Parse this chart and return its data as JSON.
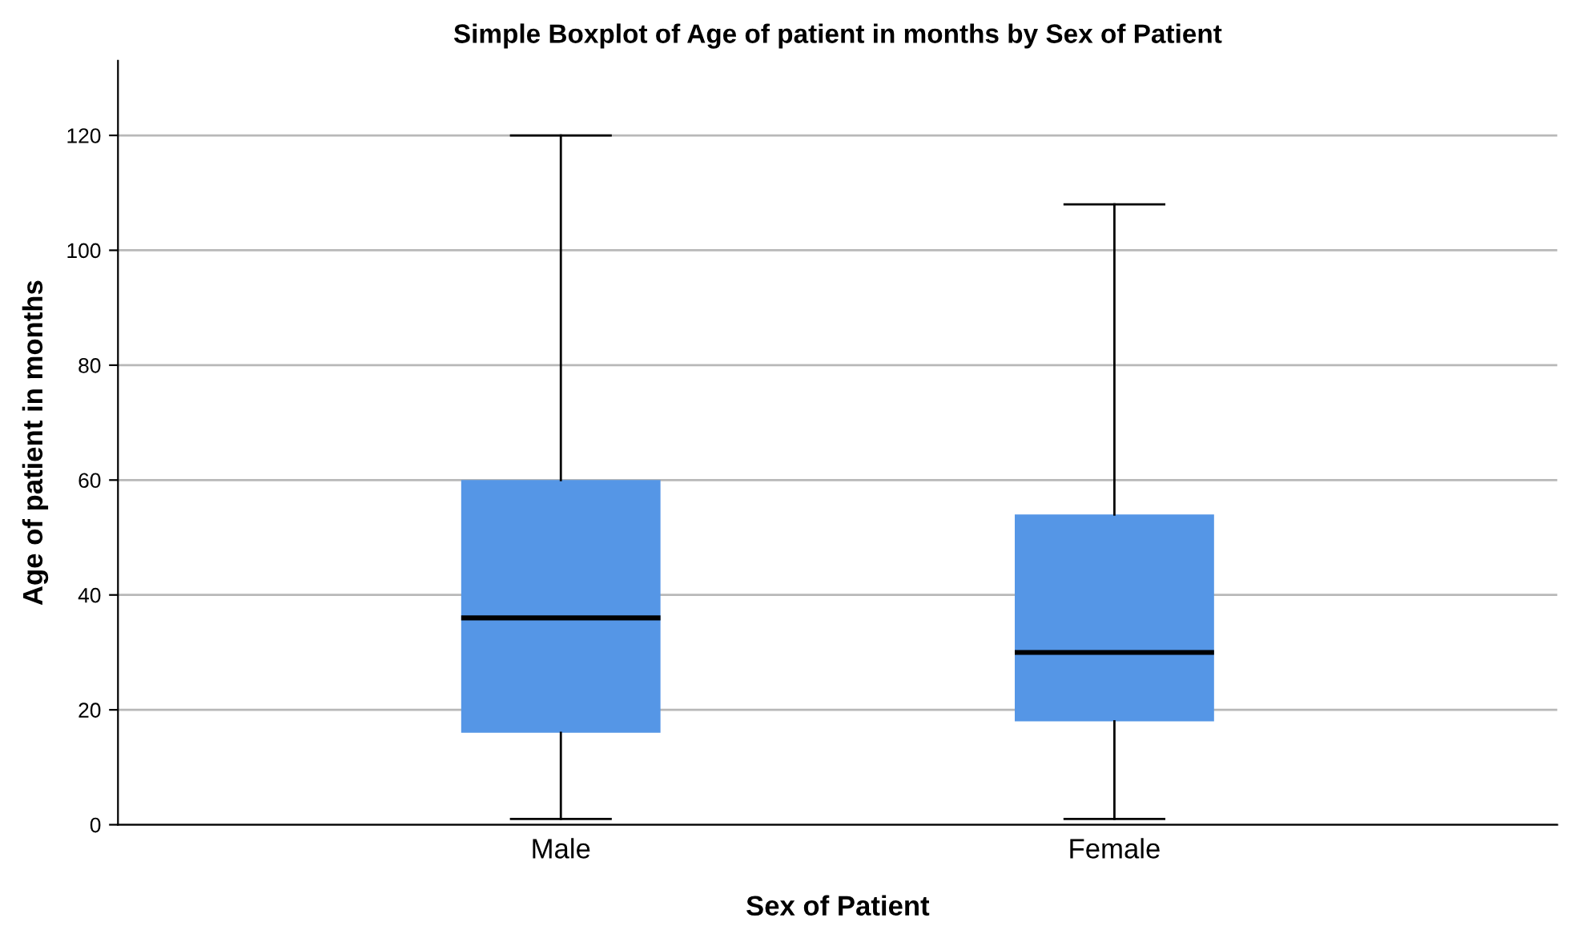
{
  "chart_data": {
    "type": "box",
    "title": "Simple Boxplot of Age of patient in months by Sex of Patient",
    "xlabel": "Sex of Patient",
    "ylabel": "Age of patient in months",
    "categories": [
      "Male",
      "Female"
    ],
    "boxes": [
      {
        "low": 1,
        "q1": 16,
        "median": 36,
        "q3": 60,
        "high": 120
      },
      {
        "low": 1,
        "q1": 18,
        "median": 30,
        "q3": 54,
        "high": 108
      }
    ],
    "color": "#5596e6",
    "ylim": [
      0,
      133
    ],
    "yticks": [
      0,
      20,
      40,
      60,
      80,
      100,
      120
    ],
    "grid": "y"
  }
}
